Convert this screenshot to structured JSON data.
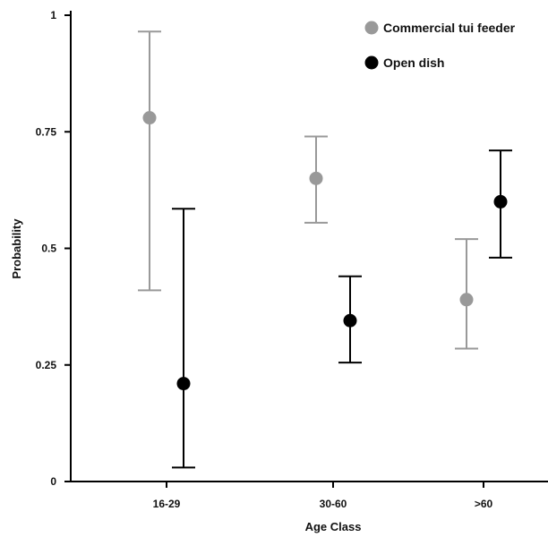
{
  "chart_data": {
    "type": "scatter",
    "xlabel": "Age Class",
    "ylabel": "Probability",
    "ylim": [
      0,
      1
    ],
    "categories": [
      "16-29",
      "30-60",
      ">60"
    ],
    "y_ticks": [
      {
        "value": 0,
        "label": "0"
      },
      {
        "value": 0.25,
        "label": "0.25"
      },
      {
        "value": 0.5,
        "label": "0.5"
      },
      {
        "value": 0.75,
        "label": "0.75"
      },
      {
        "value": 1,
        "label": "1"
      }
    ],
    "series": [
      {
        "name": "Commercial tui feeder",
        "color": "#999999",
        "values": [
          0.78,
          0.65,
          0.39
        ],
        "lower": [
          0.41,
          0.555,
          0.285
        ],
        "upper": [
          0.965,
          0.74,
          0.52
        ]
      },
      {
        "name": "Open dish",
        "color": "#000000",
        "values": [
          0.21,
          0.345,
          0.6
        ],
        "lower": [
          0.03,
          0.255,
          0.48
        ],
        "upper": [
          0.585,
          0.44,
          0.71
        ]
      }
    ],
    "legend": "top-right",
    "grid": false
  }
}
